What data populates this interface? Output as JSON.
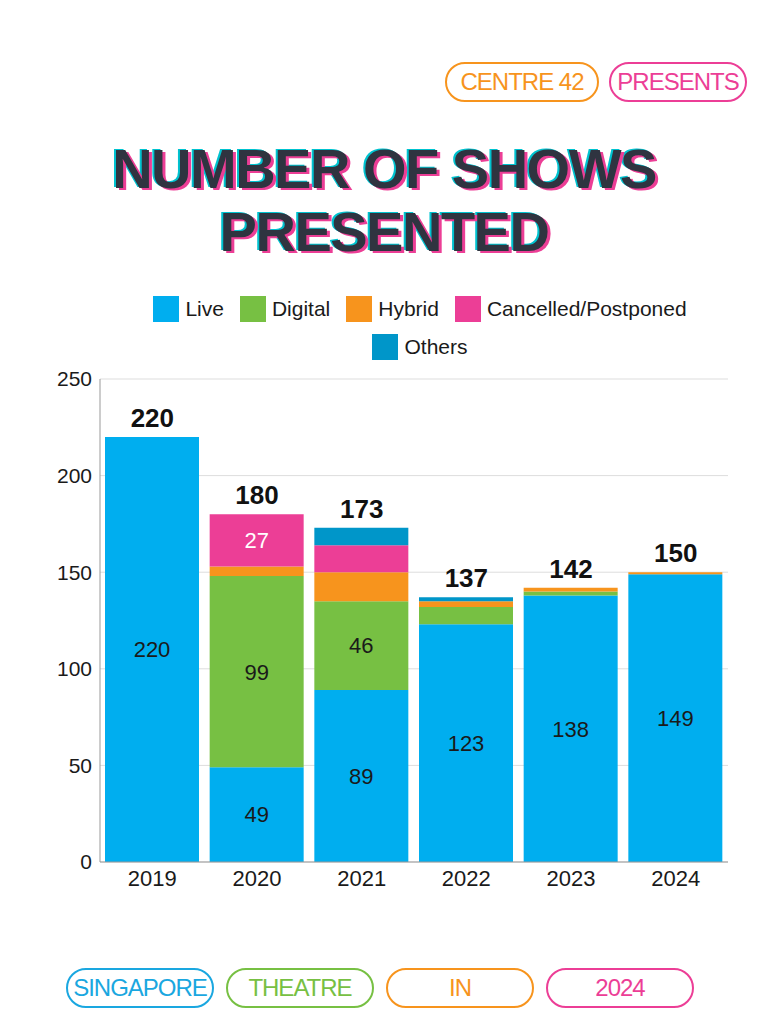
{
  "header_tags": [
    "CENTRE 42",
    "PRESENTS"
  ],
  "footer_tags": [
    "SINGAPORE",
    "THEATRE",
    "IN",
    "2024"
  ],
  "chart_data": {
    "type": "bar",
    "title": "NUMBER OF SHOWS PRESENTED",
    "categories": [
      "2019",
      "2020",
      "2021",
      "2022",
      "2023",
      "2024"
    ],
    "stacked": true,
    "legend": "top",
    "grid": true,
    "ylim": [
      0,
      250
    ],
    "yticks": [
      0,
      50,
      100,
      150,
      200,
      250
    ],
    "totals": [
      220,
      180,
      173,
      137,
      142,
      150
    ],
    "series": [
      {
        "name": "Live",
        "color": "#00aeef",
        "values": [
          220,
          49,
          89,
          123,
          138,
          149
        ],
        "data_labels": true
      },
      {
        "name": "Digital",
        "color": "#77c043",
        "values": [
          0,
          99,
          46,
          9,
          2,
          0
        ],
        "value_labels": [
          null,
          "99",
          "46",
          null,
          null,
          null
        ]
      },
      {
        "name": "Hybrid",
        "color": "#f7941d",
        "values": [
          0,
          5,
          15,
          3,
          2,
          1
        ]
      },
      {
        "name": "Cancelled/Postponed",
        "color": "#ec3e96",
        "values": [
          0,
          27,
          14,
          0,
          0,
          0
        ],
        "value_labels": [
          null,
          "27",
          null,
          null,
          null,
          null
        ]
      },
      {
        "name": "Others",
        "color": "#0096c9",
        "values": [
          0,
          0,
          9,
          2,
          0,
          0
        ]
      }
    ]
  }
}
